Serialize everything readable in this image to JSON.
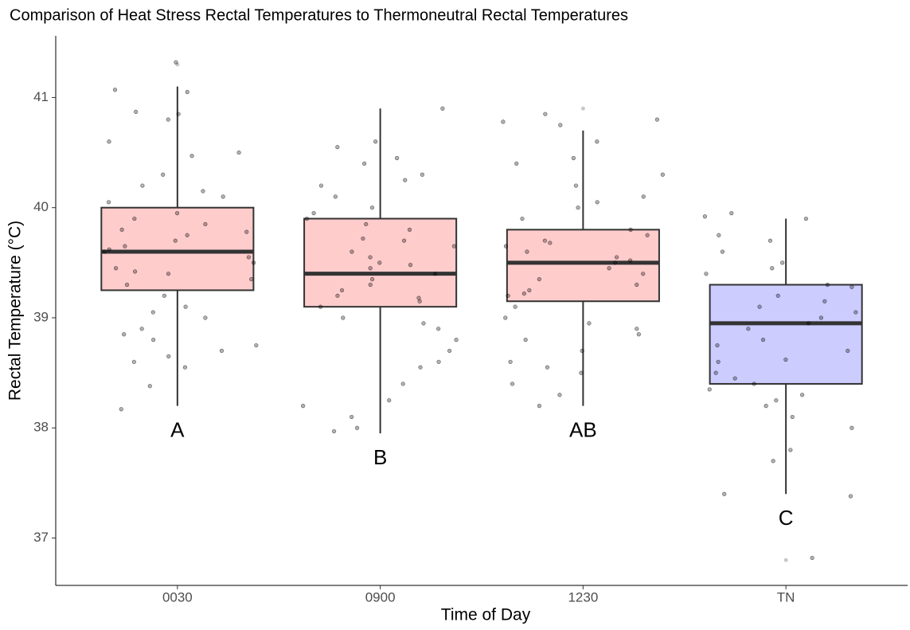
{
  "chart_data": {
    "type": "box",
    "title": "Comparison of Heat Stress Rectal Temperatures to Thermoneutral Rectal Temperatures",
    "x_label": "Time of Day",
    "y_label": "Rectal Temperature (°C)",
    "categories": [
      "0030",
      "0900",
      "1230",
      "TN"
    ],
    "colors": [
      "#ffcccc",
      "#ffcccc",
      "#ffcccc",
      "#ccccff"
    ],
    "boxes": [
      {
        "min": 38.2,
        "q1": 39.25,
        "median": 39.6,
        "q3": 40.0,
        "max": 41.1
      },
      {
        "min": 37.95,
        "q1": 39.1,
        "median": 39.4,
        "q3": 39.9,
        "max": 40.9
      },
      {
        "min": 38.2,
        "q1": 39.15,
        "median": 39.5,
        "q3": 39.8,
        "max": 40.7
      },
      {
        "min": 37.4,
        "q1": 38.4,
        "median": 38.95,
        "q3": 39.3,
        "max": 39.9
      }
    ],
    "outliers": [
      [
        41.3
      ],
      [],
      [
        40.9
      ],
      [
        36.8
      ]
    ],
    "letters": [
      "A",
      "B",
      "AB",
      "C"
    ],
    "points": [
      [
        41.32,
        41.05,
        41.07,
        40.87,
        40.8,
        40.85,
        40.6,
        40.5,
        40.47,
        40.3,
        40.2,
        40.1,
        40.15,
        40.05,
        39.95,
        39.9,
        39.85,
        39.8,
        39.75,
        39.7,
        39.65,
        39.6,
        39.55,
        39.5,
        39.45,
        39.4,
        39.35,
        39.3,
        39.2,
        39.1,
        39.0,
        38.9,
        38.85,
        38.75,
        38.65,
        38.6,
        38.55,
        38.38,
        38.17,
        38.7,
        38.8,
        39.05,
        39.62,
        39.78,
        39.42
      ],
      [
        40.9,
        40.6,
        40.55,
        40.45,
        40.4,
        40.3,
        40.25,
        40.2,
        40.1,
        40.0,
        39.95,
        39.9,
        39.85,
        39.8,
        39.7,
        39.65,
        39.6,
        39.55,
        39.5,
        39.45,
        39.4,
        39.35,
        39.3,
        39.25,
        39.2,
        39.15,
        39.1,
        39.0,
        38.95,
        38.9,
        38.8,
        38.7,
        38.6,
        38.55,
        38.4,
        38.25,
        38.2,
        38.1,
        38.0,
        37.97,
        39.72,
        39.48,
        39.18
      ],
      [
        40.85,
        40.8,
        40.78,
        40.75,
        40.6,
        40.45,
        40.4,
        40.3,
        40.2,
        40.1,
        40.05,
        40.0,
        39.9,
        39.8,
        39.75,
        39.7,
        39.65,
        39.6,
        39.55,
        39.5,
        39.45,
        39.4,
        39.35,
        39.3,
        39.25,
        39.2,
        39.1,
        39.0,
        38.95,
        38.9,
        38.85,
        38.8,
        38.7,
        38.6,
        38.55,
        38.5,
        38.4,
        38.3,
        38.2,
        39.68,
        39.52,
        39.22
      ],
      [
        39.95,
        39.92,
        39.9,
        39.75,
        39.7,
        39.6,
        39.5,
        39.45,
        39.4,
        39.3,
        39.2,
        39.15,
        39.1,
        39.05,
        39.0,
        38.95,
        38.9,
        38.8,
        38.75,
        38.7,
        38.6,
        38.5,
        38.45,
        38.4,
        38.35,
        38.3,
        38.25,
        38.2,
        38.1,
        38.0,
        37.8,
        37.7,
        37.4,
        37.38,
        36.82,
        38.62,
        39.28
      ]
    ],
    "ylim": [
      36.57,
      41.56
    ],
    "yticks": [
      37,
      38,
      39,
      40,
      41
    ]
  }
}
